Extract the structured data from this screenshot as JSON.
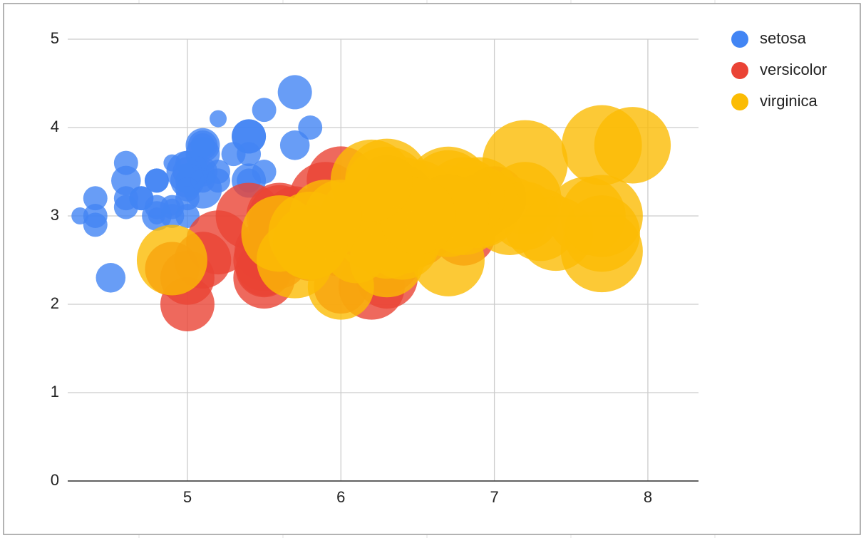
{
  "chart_data": {
    "type": "bubble",
    "xlim": [
      4.22,
      8.33
    ],
    "xticks": [
      5,
      6,
      7,
      8
    ],
    "ylim": [
      0,
      5
    ],
    "yticks": [
      0,
      1,
      2,
      3,
      4,
      5
    ],
    "grid": true,
    "legend": "right",
    "series": [
      {
        "name": "setosa",
        "color": "#4285f4",
        "x": [
          5.1,
          4.9,
          4.7,
          4.6,
          5.0,
          5.4,
          4.6,
          5.0,
          4.4,
          4.9,
          5.4,
          4.8,
          4.8,
          4.3,
          5.8,
          5.7,
          5.4,
          5.1,
          5.7,
          5.1,
          5.4,
          5.1,
          4.6,
          5.1,
          4.8,
          5.0,
          5.0,
          5.2,
          5.2,
          4.7,
          4.8,
          5.4,
          5.2,
          5.5,
          4.9,
          5.0,
          5.5,
          4.9,
          4.4,
          5.1,
          5.0,
          4.5,
          4.4,
          5.0,
          5.1,
          4.8,
          5.1,
          4.6,
          5.3,
          5.0
        ],
        "values": [
          3.5,
          3.0,
          3.2,
          3.1,
          3.6,
          3.9,
          3.4,
          3.4,
          2.9,
          3.1,
          3.7,
          3.4,
          3.0,
          3.0,
          4.0,
          4.4,
          3.9,
          3.5,
          3.8,
          3.8,
          3.4,
          3.7,
          3.6,
          3.3,
          3.4,
          3.0,
          3.4,
          3.5,
          3.4,
          3.2,
          3.1,
          3.4,
          4.1,
          4.2,
          3.1,
          3.2,
          3.5,
          3.6,
          3.0,
          3.4,
          3.5,
          2.3,
          3.2,
          3.5,
          3.8,
          3.0,
          3.8,
          3.2,
          3.7,
          3.3
        ],
        "sizes": [
          0.2,
          0.2,
          0.2,
          0.2,
          0.2,
          0.4,
          0.3,
          0.2,
          0.2,
          0.1,
          0.2,
          0.2,
          0.1,
          0.1,
          0.2,
          0.4,
          0.4,
          0.3,
          0.3,
          0.3,
          0.2,
          0.4,
          0.2,
          0.5,
          0.2,
          0.2,
          0.4,
          0.2,
          0.2,
          0.2,
          0.2,
          0.4,
          0.1,
          0.2,
          0.2,
          0.2,
          0.2,
          0.1,
          0.2,
          0.2,
          0.3,
          0.3,
          0.2,
          0.6,
          0.4,
          0.3,
          0.2,
          0.2,
          0.2,
          0.2
        ]
      },
      {
        "name": "versicolor",
        "color": "#ea4335",
        "x": [
          7.0,
          6.4,
          6.9,
          5.5,
          6.5,
          5.7,
          6.3,
          4.9,
          6.6,
          5.2,
          5.0,
          5.9,
          6.0,
          6.1,
          5.6,
          6.7,
          5.6,
          5.8,
          6.2,
          5.6,
          5.9,
          6.1,
          6.3,
          6.1,
          6.4,
          6.6,
          6.8,
          6.7,
          6.0,
          5.7,
          5.5,
          5.5,
          5.8,
          6.0,
          5.4,
          6.0,
          6.7,
          6.3,
          5.6,
          5.5,
          5.5,
          6.1,
          5.8,
          5.0,
          5.6,
          5.7,
          5.7,
          6.2,
          5.1,
          5.7
        ],
        "values": [
          3.2,
          3.2,
          3.1,
          2.3,
          2.8,
          2.8,
          3.3,
          2.4,
          2.9,
          2.7,
          2.0,
          3.0,
          2.2,
          2.9,
          2.9,
          3.1,
          3.0,
          2.7,
          2.2,
          2.5,
          3.2,
          2.8,
          2.5,
          2.8,
          2.9,
          3.0,
          2.8,
          3.0,
          2.9,
          2.6,
          2.4,
          2.4,
          2.7,
          2.7,
          3.0,
          3.4,
          3.1,
          2.3,
          3.0,
          2.5,
          2.6,
          3.0,
          2.6,
          2.3,
          2.7,
          3.0,
          2.9,
          2.9,
          2.5,
          2.8
        ],
        "sizes": [
          1.4,
          1.5,
          1.5,
          1.3,
          1.5,
          1.3,
          1.6,
          1.0,
          1.3,
          1.4,
          1.0,
          1.5,
          1.0,
          1.4,
          1.3,
          1.4,
          1.5,
          1.0,
          1.5,
          1.1,
          1.8,
          1.3,
          1.5,
          1.2,
          1.3,
          1.4,
          1.4,
          1.7,
          1.5,
          1.0,
          1.1,
          1.0,
          1.2,
          1.6,
          1.5,
          1.6,
          1.5,
          1.3,
          1.3,
          1.3,
          1.2,
          1.4,
          1.2,
          1.0,
          1.3,
          1.2,
          1.3,
          1.3,
          1.1,
          1.3
        ]
      },
      {
        "name": "virginica",
        "color": "#fbbc04",
        "x": [
          6.3,
          5.8,
          7.1,
          6.3,
          6.5,
          7.6,
          4.9,
          7.3,
          6.7,
          7.2,
          6.5,
          6.4,
          6.8,
          5.7,
          5.8,
          6.4,
          6.5,
          7.7,
          7.7,
          6.0,
          6.9,
          5.6,
          7.7,
          6.3,
          6.7,
          7.2,
          6.2,
          6.1,
          6.4,
          7.2,
          7.4,
          7.9,
          6.4,
          6.3,
          6.1,
          7.7,
          6.3,
          6.4,
          6.0,
          6.9,
          6.7,
          6.9,
          5.8,
          6.8,
          6.7,
          6.7,
          6.3,
          6.5,
          6.2,
          5.9
        ],
        "values": [
          3.3,
          2.7,
          3.0,
          2.9,
          3.0,
          3.0,
          2.5,
          2.9,
          2.5,
          3.6,
          3.2,
          2.7,
          3.0,
          2.5,
          2.8,
          3.2,
          3.0,
          3.8,
          2.6,
          2.2,
          3.2,
          2.8,
          2.8,
          2.7,
          3.3,
          3.2,
          2.8,
          3.0,
          2.8,
          3.0,
          2.8,
          3.8,
          2.8,
          2.8,
          2.6,
          3.0,
          3.4,
          3.1,
          3.0,
          3.1,
          3.1,
          3.1,
          2.7,
          3.2,
          3.3,
          3.0,
          2.5,
          3.0,
          3.4,
          3.0
        ],
        "sizes": [
          2.5,
          1.9,
          2.1,
          1.8,
          2.2,
          2.1,
          1.7,
          1.8,
          1.8,
          2.5,
          2.0,
          1.9,
          2.1,
          2.0,
          2.4,
          2.3,
          1.8,
          2.2,
          2.3,
          1.5,
          2.3,
          2.0,
          2.0,
          1.8,
          2.1,
          1.8,
          1.8,
          1.8,
          2.1,
          1.6,
          1.9,
          2.0,
          2.2,
          1.5,
          1.4,
          2.3,
          2.4,
          1.8,
          1.8,
          2.1,
          2.4,
          2.3,
          1.9,
          2.3,
          2.5,
          2.3,
          1.9,
          2.0,
          2.3,
          1.8
        ]
      }
    ]
  }
}
